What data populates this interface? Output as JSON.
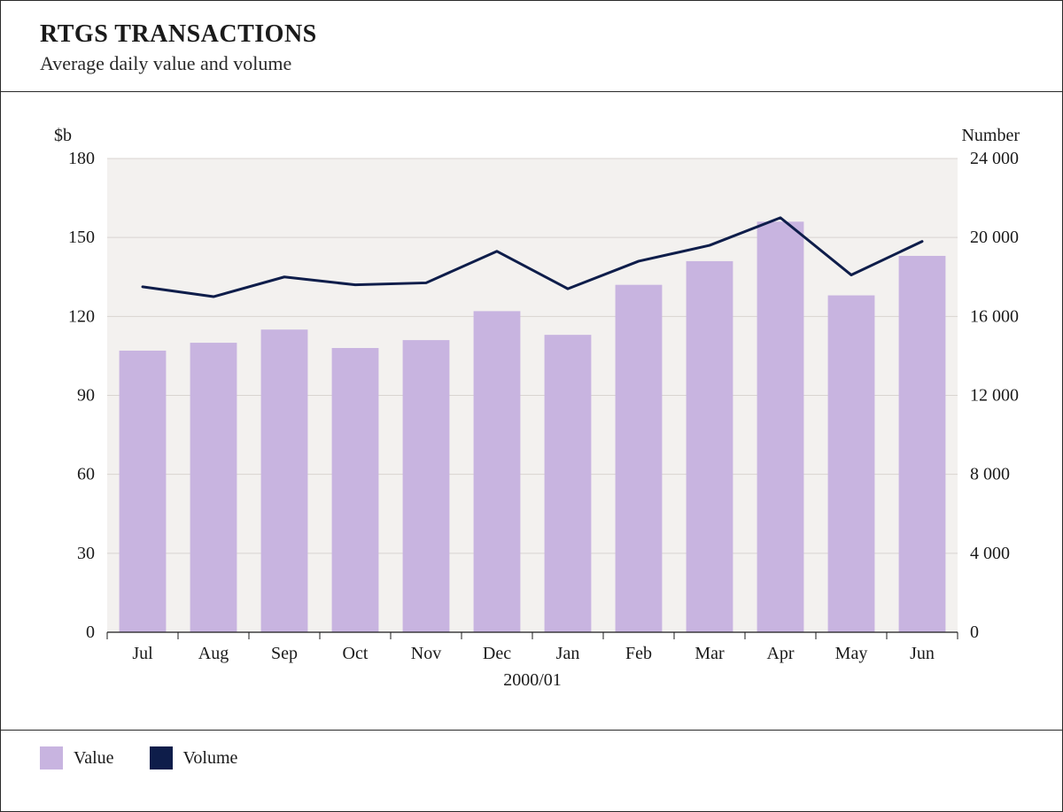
{
  "header": {
    "title": "RTGS TRANSACTIONS",
    "subtitle": "Average daily value and volume"
  },
  "legend": {
    "value_label": "Value",
    "volume_label": "Volume"
  },
  "chart": {
    "type": "bar+line",
    "background_color": "#ffffff",
    "plot_background_color": "#f3f1ef",
    "grid_color": "#d8d4d0",
    "axis_color": "#1a1a1a",
    "bar_color": "#c8b4e0",
    "line_color": "#0e1d4a",
    "line_width": 3,
    "bar_width_ratio": 0.66,
    "font_family": "Georgia, serif",
    "left_axis": {
      "label": "$b",
      "min": 0,
      "max": 180,
      "tick_step": 30,
      "label_fontsize": 20,
      "tick_fontsize": 20
    },
    "right_axis": {
      "label": "Number",
      "min": 0,
      "max": 24000,
      "tick_step": 4000,
      "label_fontsize": 20,
      "tick_fontsize": 20,
      "tick_format": "space_thousands"
    },
    "x_axis": {
      "label": "2000/01",
      "label_fontsize": 20,
      "categories": [
        "Jul",
        "Aug",
        "Sep",
        "Oct",
        "Nov",
        "Dec",
        "Jan",
        "Feb",
        "Mar",
        "Apr",
        "May",
        "Jun"
      ]
    },
    "series": {
      "value_bars": [
        107,
        110,
        115,
        108,
        111,
        122,
        113,
        132,
        141,
        156,
        128,
        143
      ],
      "volume_line": [
        17500,
        17000,
        18000,
        17600,
        17700,
        19300,
        17400,
        18800,
        19600,
        21000,
        18100,
        19800
      ]
    }
  }
}
